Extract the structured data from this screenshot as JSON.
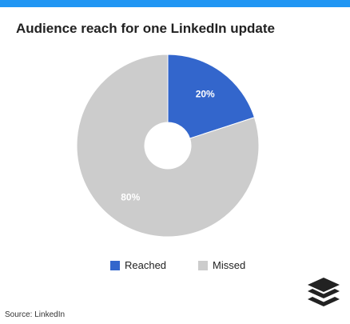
{
  "colors": {
    "top_bar": "#2196f3",
    "reached": "#3366cc",
    "missed": "#cccccc",
    "logo": "#222222"
  },
  "source": "Source: LinkedIn",
  "logo_icon": "buffer-stack-icon",
  "chart_data": {
    "type": "pie",
    "style": "donut",
    "title": "Audience reach for one LinkedIn update",
    "slices": [
      {
        "label": "Reached",
        "value": 20,
        "display": "20%",
        "color": "#3366cc"
      },
      {
        "label": "Missed",
        "value": 80,
        "display": "80%",
        "color": "#cccccc"
      }
    ],
    "legend_position": "bottom"
  }
}
